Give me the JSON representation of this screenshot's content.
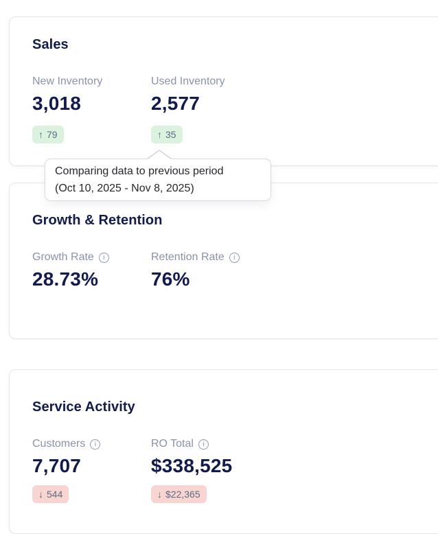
{
  "colors": {
    "value_navy": "#121a4f",
    "label_gray": "#8a92ac",
    "badge_text": "#5d6c82",
    "badge_up_bg": "#dbf2de",
    "badge_down_bg": "#f8d5d1",
    "card_border": "#e4e5ec",
    "tooltip_text": "#26262c",
    "page_bg": "#ffffff"
  },
  "icons": {
    "up_arrow": "↑",
    "down_arrow": "↓",
    "info_glyph": "i"
  },
  "tooltip": {
    "line1": "Comparing data to previous period",
    "line2": "(Oct 10, 2025 - Nov 8, 2025)"
  },
  "cards": [
    {
      "title": "Sales",
      "metrics": [
        {
          "label": "New Inventory",
          "value": "3,018",
          "delta": "79",
          "direction": "up"
        },
        {
          "label": "Used Inventory",
          "value": "2,577",
          "delta": "35",
          "direction": "up"
        }
      ]
    },
    {
      "title": "Growth & Retention",
      "metrics": [
        {
          "label": "Growth Rate",
          "value": "28.73%"
        },
        {
          "label": "Retention Rate",
          "value": "76%"
        }
      ]
    },
    {
      "title": "Service Activity",
      "metrics": [
        {
          "label": "Customers",
          "value": "7,707",
          "delta": "544",
          "direction": "down"
        },
        {
          "label": "RO Total",
          "value": "$338,525",
          "delta": "$22,365",
          "direction": "down"
        }
      ]
    }
  ]
}
